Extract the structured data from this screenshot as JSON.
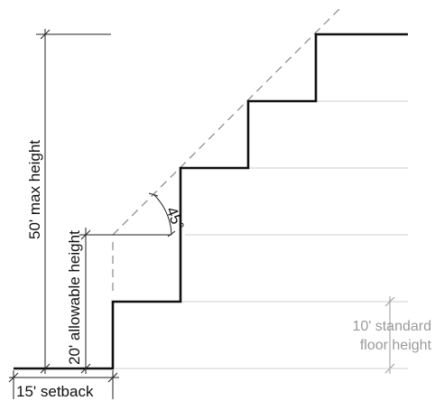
{
  "diagram": {
    "labels": {
      "max_height": "50' max height",
      "allowable_height": "20' allowable height",
      "setback": "15' setback",
      "angle": "45°",
      "floor_height_line1": "10' standard",
      "floor_height_line2": "floor height"
    },
    "colors": {
      "profile": "#111111",
      "dimension": "#222222",
      "guide": "#cfcfcf",
      "annotation_grey": "#9a9a9a",
      "plane_dash": "#888888"
    }
  }
}
